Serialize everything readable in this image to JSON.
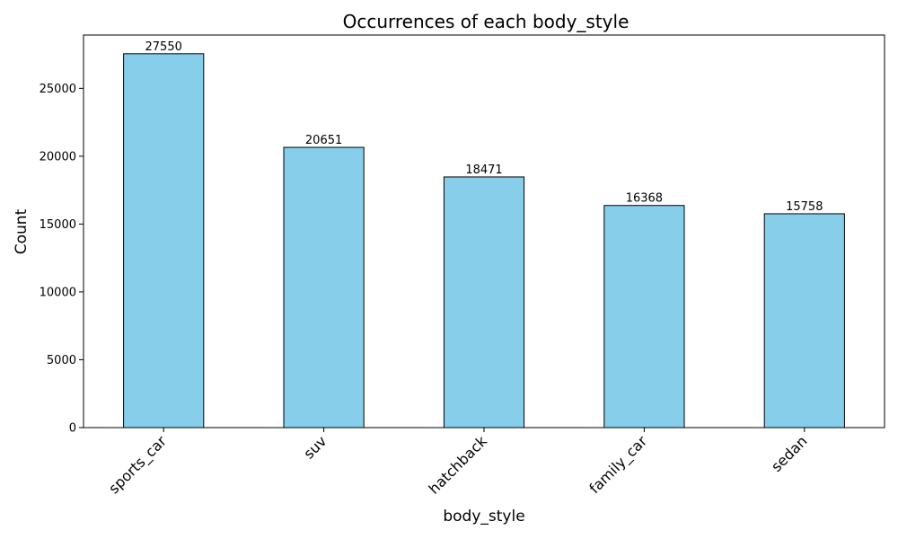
{
  "chart_data": {
    "type": "bar",
    "title": "Occurrences of each body_style",
    "xlabel": "body_style",
    "ylabel": "Count",
    "categories": [
      "sports_car",
      "suv",
      "hatchback",
      "family_car",
      "sedan"
    ],
    "values": [
      27550,
      20651,
      18471,
      16368,
      15758
    ],
    "ylim": [
      0,
      28928
    ],
    "yticks": [
      0,
      5000,
      10000,
      15000,
      20000,
      25000
    ],
    "bar_color": "#87CEEB",
    "bar_edge_color": "#000000",
    "grid": false,
    "data_labels": true
  }
}
